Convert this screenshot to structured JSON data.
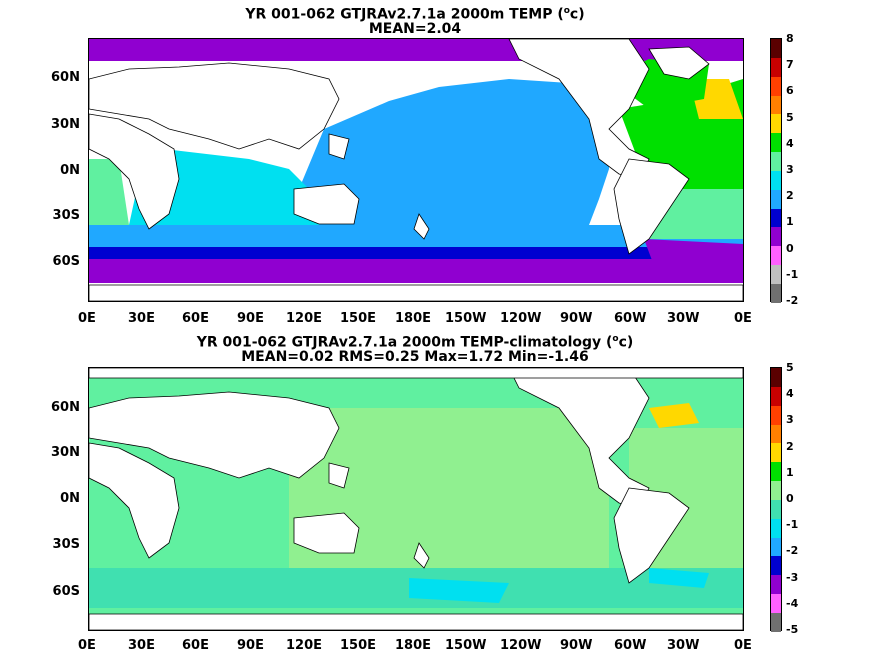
{
  "panels": [
    {
      "title_line1": "YR 001-062 GTJRAv2.7.1a 2000m TEMP (",
      "title_unit_sup": "o",
      "title_unit_tail": "c)",
      "title_line2": "MEAN=2.04",
      "colorbar_labels": [
        "8",
        "7",
        "6",
        "5",
        "4",
        "3",
        "2",
        "1",
        "0",
        "-1",
        "-2"
      ],
      "colorbar_colors": [
        "#5a0000",
        "#c80000",
        "#ff4000",
        "#ff8000",
        "#ffd800",
        "#00e000",
        "#60f0a0",
        "#00e0f0",
        "#20a8ff",
        "#0000d0",
        "#9000d0",
        "#ff60ff",
        "#c0c0c0",
        "#707070"
      ],
      "y_ticks": [
        "60N",
        "30N",
        "0N",
        "30S",
        "60S"
      ],
      "x_ticks": [
        "0E",
        "30E",
        "60E",
        "90E",
        "120E",
        "150E",
        "180E",
        "150W",
        "120W",
        "90W",
        "60W",
        "30W",
        "0E"
      ]
    },
    {
      "title_line1": "YR 001-062 GTJRAv2.7.1a 2000m TEMP-climatology (",
      "title_unit_sup": "o",
      "title_unit_tail": "c)",
      "title_line2": "MEAN=0.02   RMS=0.25   Max=1.72   Min=-1.46",
      "colorbar_labels": [
        "5",
        "4",
        "3",
        "2",
        "1",
        "0",
        "-1",
        "-2",
        "-3",
        "-4",
        "-5"
      ],
      "colorbar_colors": [
        "#5a0000",
        "#c80000",
        "#ff4000",
        "#ff8000",
        "#ffd800",
        "#00e000",
        "#90f090",
        "#40e0b0",
        "#00e0f0",
        "#20a8ff",
        "#0000d0",
        "#9000d0",
        "#ff60ff",
        "#707070"
      ],
      "y_ticks": [
        "60N",
        "30N",
        "0N",
        "30S",
        "60S"
      ],
      "x_ticks": [
        "0E",
        "30E",
        "60E",
        "90E",
        "120E",
        "150E",
        "180E",
        "150W",
        "120W",
        "90W",
        "60W",
        "30W",
        "0E"
      ]
    }
  ]
}
